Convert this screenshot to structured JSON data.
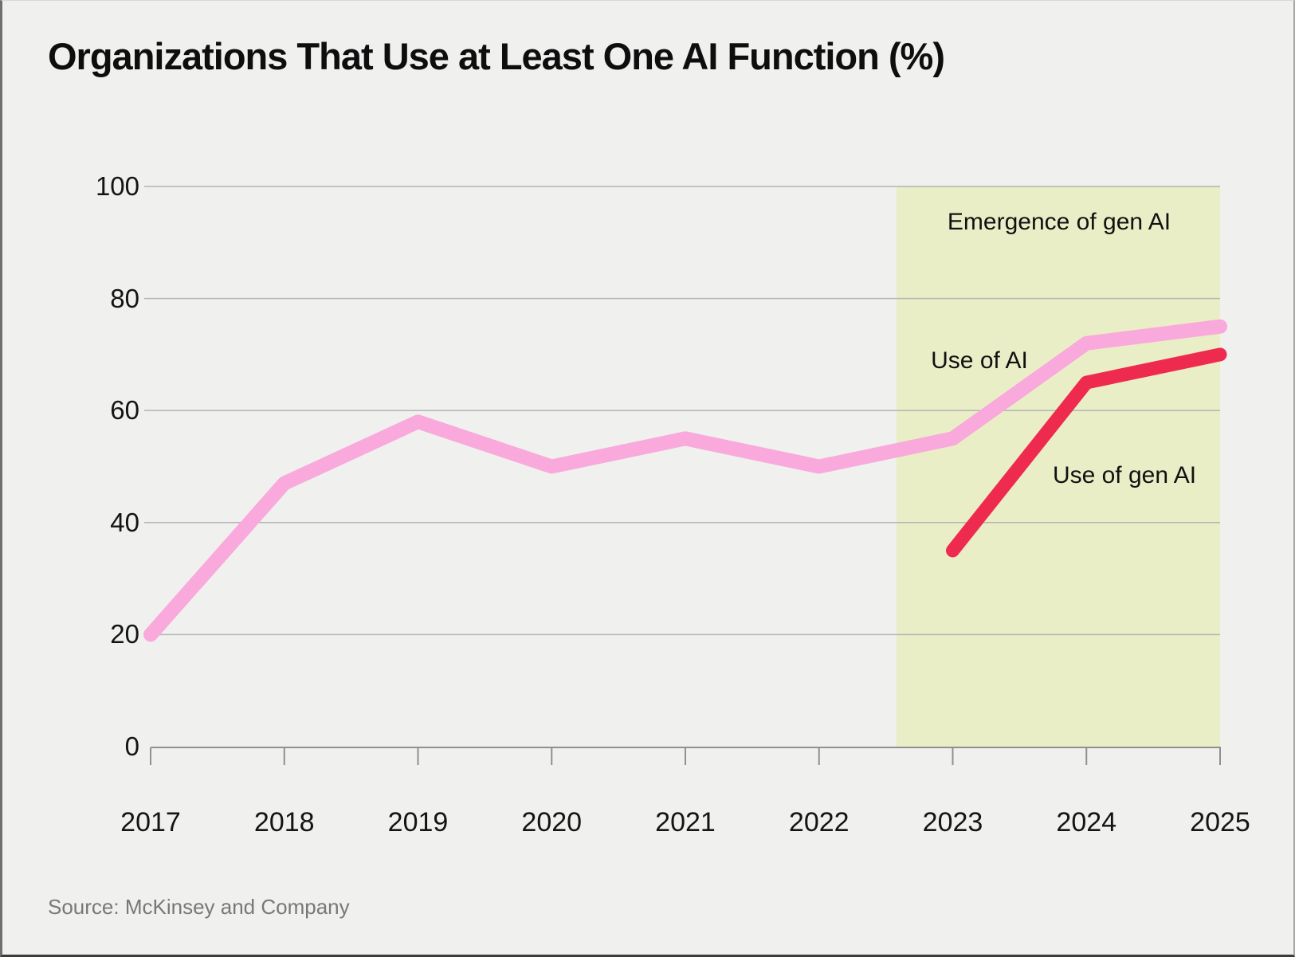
{
  "page": {
    "title": "Organizations That Use at Least One AI Function (%)",
    "source": "Source: McKinsey and Company"
  },
  "annotations": {
    "region_label": "Emergence of gen AI",
    "ai_line_label": "Use of AI",
    "genai_line_label": "Use of gen AI"
  },
  "colors": {
    "background": "#f0f0ee",
    "ai_line": "#f9a9dc",
    "genai_line": "#ee2b4f",
    "region_fill": "#eaeec6",
    "gridline": "#b4b4b4",
    "axis": "#909090",
    "text": "#141414",
    "source_text": "#787878"
  },
  "chart_data": {
    "type": "line",
    "title": "Organizations That Use at Least One AI Function (%)",
    "xlabel": "",
    "ylabel": "",
    "ylim": [
      0,
      100
    ],
    "yticks": [
      0,
      20,
      40,
      60,
      80,
      100
    ],
    "xticks": [
      "2017",
      "2018",
      "2019",
      "2020",
      "2021",
      "2022",
      "2023",
      "2024",
      "2025"
    ],
    "grid": "horizontal",
    "legend_position": "inline-annotations",
    "series": [
      {
        "name": "Use of AI",
        "color_key": "ai_line",
        "x": [
          2017,
          2018,
          2019,
          2020,
          2021,
          2022,
          2023,
          2024,
          2025
        ],
        "values": [
          20,
          47,
          58,
          50,
          55,
          50,
          55,
          72,
          75
        ]
      },
      {
        "name": "Use of gen AI",
        "color_key": "genai_line",
        "x": [
          2023,
          2024,
          2025
        ],
        "values": [
          35,
          65,
          70
        ]
      }
    ],
    "highlight_region": {
      "label": "Emergence of gen AI",
      "x_start": 2022.58,
      "x_end": 2025,
      "y_start": 0,
      "y_end": 100
    },
    "source": "Source: McKinsey and Company"
  }
}
